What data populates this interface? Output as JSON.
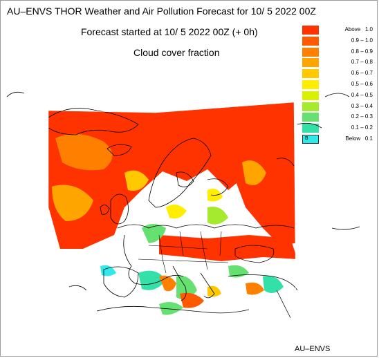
{
  "header": {
    "title": "AU–ENVS THOR Weather and Air Pollution Forecast for 10/ 5 2022  00Z",
    "subtitle": "Forecast started at 10/ 5 2022  00Z (+ 0h)",
    "field": "Cloud cover fraction"
  },
  "legend": {
    "items": [
      {
        "label": "Above   1.0",
        "color": "#ff3300"
      },
      {
        "label": "0.9 – 1.0",
        "color": "#ff5a00"
      },
      {
        "label": "0.8 – 0.9",
        "color": "#ff8000"
      },
      {
        "label": "0.7 – 0.8",
        "color": "#ffa500"
      },
      {
        "label": "0.6 – 0.7",
        "color": "#ffc800"
      },
      {
        "label": "0.5 – 0.6",
        "color": "#ffee00"
      },
      {
        "label": "0.4 – 0.5",
        "color": "#d9f000"
      },
      {
        "label": "0.3 – 0.4",
        "color": "#a6ea30"
      },
      {
        "label": "0.2 – 0.3",
        "color": "#66e070"
      },
      {
        "label": "0.1 – 0.2",
        "color": "#33e0a8"
      },
      {
        "label": "Below   0.1",
        "color": "#33e8e8"
      }
    ],
    "below_mark": "B"
  },
  "footer": {
    "credit": "AU–ENVS"
  }
}
